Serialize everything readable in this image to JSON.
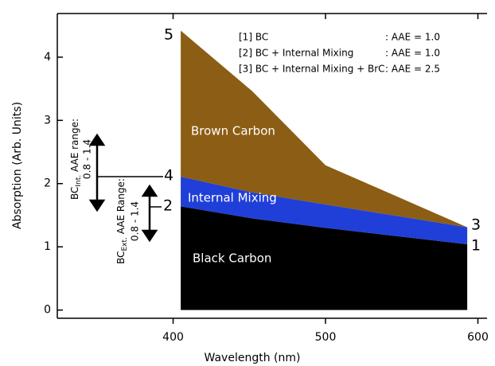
{
  "chart_data": {
    "type": "stacked_area",
    "x_label": "Wavelength (nm)",
    "y_label": "Absorption (Arb. Units)",
    "x": [
      405,
      452,
      500,
      593
    ],
    "series": [
      {
        "name": "Black Carbon",
        "color": "#000000",
        "values": [
          1.64,
          1.45,
          1.3,
          1.04
        ]
      },
      {
        "name": "Internal Mixing",
        "color": "#1f3fd8",
        "values": [
          0.47,
          0.41,
          0.37,
          0.27
        ]
      },
      {
        "name": "Brown Carbon",
        "color": "#8c5d14",
        "values": [
          2.31,
          1.6,
          0.62,
          0.0
        ]
      }
    ],
    "xlim": [
      324,
      606
    ],
    "ylim": [
      -0.13,
      4.69
    ],
    "xticks": [
      400,
      500,
      600
    ],
    "yticks": [
      0,
      1,
      2,
      3,
      4
    ],
    "legend_rows": [
      [
        "[1] BC",
        ": AAE = 1.0"
      ],
      [
        "[2] BC + Internal Mixing",
        ": AAE = 1.0"
      ],
      [
        "[3] BC + Internal Mixing + BrC",
        ": AAE = 2.5"
      ]
    ],
    "markers": [
      "5",
      "4",
      "2",
      "3",
      "1"
    ],
    "int_range": {
      "label": "BC",
      "sub": "Int.",
      "rest": " AAE range:",
      "range": "0.8 - 1.4"
    },
    "ext_range": {
      "label": "BC",
      "sub": "Ext.",
      "rest": " AAE Range:",
      "range": "0.8 - 1.4"
    }
  }
}
